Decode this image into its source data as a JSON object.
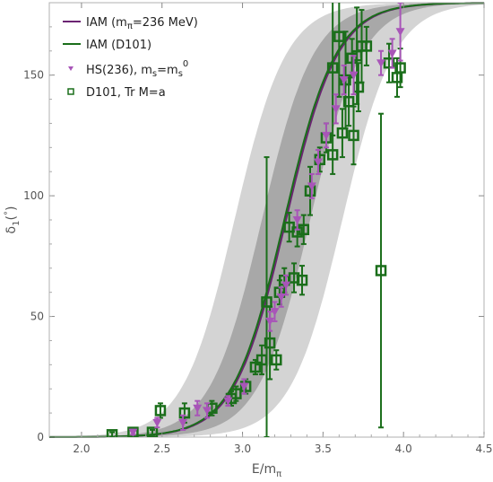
{
  "chart_data": {
    "type": "scatter",
    "title": "",
    "xlabel": "E/mπ",
    "ylabel": "δ1(°)",
    "xlim": [
      1.8,
      4.5
    ],
    "ylim": [
      0,
      180
    ],
    "x_ticks": [
      2.0,
      2.5,
      3.0,
      3.5,
      4.0,
      4.5
    ],
    "y_ticks": [
      0,
      50,
      100,
      150
    ],
    "x_tick_labels": [
      "2.0",
      "2.5",
      "3.0",
      "3.5",
      "4.0",
      "4.5"
    ],
    "y_tick_labels": [
      "0",
      "50",
      "100",
      "150"
    ],
    "legend_position": "top-left",
    "colors": {
      "purple": "#9b59b6",
      "dark_purple": "#5a1e5e",
      "green": "#1a6e1a",
      "band_outer": "#d4d4d4",
      "band_inner": "#a8a8a8"
    },
    "bands": {
      "outer": {
        "midpoint_low": 2.95,
        "midpoint_high": 3.62,
        "width": 0.16
      },
      "inner": {
        "midpoint_low": 3.12,
        "midpoint_high": 3.42,
        "width": 0.16
      }
    },
    "series": [
      {
        "name": "IAM (mπ=236 MeV)",
        "kind": "line",
        "color": "#6b2472",
        "curve": {
          "midpoint": 3.27,
          "width": 0.16,
          "max": 180
        }
      },
      {
        "name": "IAM (D101)",
        "kind": "line",
        "color": "#1a6e1a",
        "curve": {
          "midpoint": 3.26,
          "width": 0.16,
          "max": 180
        }
      },
      {
        "name": "HS(236), ms=ms0",
        "kind": "points",
        "marker": "triangle-down",
        "color": "#a855b8",
        "points": [
          {
            "x": 2.32,
            "y": 2,
            "e": 1
          },
          {
            "x": 2.47,
            "y": 6,
            "e": 2
          },
          {
            "x": 2.63,
            "y": 6,
            "e": 3
          },
          {
            "x": 2.72,
            "y": 12,
            "e": 3
          },
          {
            "x": 2.78,
            "y": 11,
            "e": 3
          },
          {
            "x": 2.91,
            "y": 15,
            "e": 2
          },
          {
            "x": 3.01,
            "y": 21,
            "e": 3
          },
          {
            "x": 3.17,
            "y": 48,
            "e": 4
          },
          {
            "x": 3.2,
            "y": 52,
            "e": 4
          },
          {
            "x": 3.24,
            "y": 58,
            "e": 4
          },
          {
            "x": 3.27,
            "y": 63,
            "e": 4
          },
          {
            "x": 3.34,
            "y": 90,
            "e": 4
          },
          {
            "x": 3.43,
            "y": 104,
            "e": 5
          },
          {
            "x": 3.47,
            "y": 114,
            "e": 5
          },
          {
            "x": 3.52,
            "y": 125,
            "e": 5
          },
          {
            "x": 3.58,
            "y": 136,
            "e": 6
          },
          {
            "x": 3.63,
            "y": 148,
            "e": 6
          },
          {
            "x": 3.69,
            "y": 150,
            "e": 8
          },
          {
            "x": 3.86,
            "y": 155,
            "e": 5
          },
          {
            "x": 3.93,
            "y": 159,
            "e": 6
          },
          {
            "x": 3.98,
            "y": 168,
            "e": 12
          }
        ]
      },
      {
        "name": "D101, Tr M=a",
        "kind": "points",
        "marker": "square-open",
        "color": "#1a6e1a",
        "points": [
          {
            "x": 2.19,
            "y": 1,
            "e": 1
          },
          {
            "x": 2.32,
            "y": 2,
            "e": 1
          },
          {
            "x": 2.44,
            "y": 2,
            "e": 1
          },
          {
            "x": 2.49,
            "y": 11,
            "e": 3
          },
          {
            "x": 2.64,
            "y": 10,
            "e": 4
          },
          {
            "x": 2.81,
            "y": 12,
            "e": 3
          },
          {
            "x": 2.93,
            "y": 16,
            "e": 3
          },
          {
            "x": 2.96,
            "y": 18,
            "e": 3
          },
          {
            "x": 3.02,
            "y": 21,
            "e": 3
          },
          {
            "x": 3.08,
            "y": 29,
            "e": 3
          },
          {
            "x": 3.12,
            "y": 32,
            "e": 6
          },
          {
            "x": 3.15,
            "y": 56,
            "e": 60
          },
          {
            "x": 3.17,
            "y": 39,
            "e": 15
          },
          {
            "x": 3.21,
            "y": 32,
            "e": 4
          },
          {
            "x": 3.23,
            "y": 60,
            "e": 5
          },
          {
            "x": 3.26,
            "y": 65,
            "e": 5
          },
          {
            "x": 3.29,
            "y": 87,
            "e": 6
          },
          {
            "x": 3.32,
            "y": 66,
            "e": 6
          },
          {
            "x": 3.34,
            "y": 85,
            "e": 6
          },
          {
            "x": 3.37,
            "y": 65,
            "e": 6
          },
          {
            "x": 3.38,
            "y": 86,
            "e": 6
          },
          {
            "x": 3.42,
            "y": 102,
            "e": 10
          },
          {
            "x": 3.48,
            "y": 115,
            "e": 5
          },
          {
            "x": 3.52,
            "y": 124,
            "e": 6
          },
          {
            "x": 3.56,
            "y": 153,
            "e": 28
          },
          {
            "x": 3.56,
            "y": 117,
            "e": 8
          },
          {
            "x": 3.6,
            "y": 166,
            "e": 25
          },
          {
            "x": 3.62,
            "y": 126,
            "e": 10
          },
          {
            "x": 3.64,
            "y": 148,
            "e": 20
          },
          {
            "x": 3.66,
            "y": 139,
            "e": 10
          },
          {
            "x": 3.68,
            "y": 157,
            "e": 8
          },
          {
            "x": 3.69,
            "y": 125,
            "e": 12
          },
          {
            "x": 3.71,
            "y": 158,
            "e": 20
          },
          {
            "x": 3.72,
            "y": 145,
            "e": 10
          },
          {
            "x": 3.74,
            "y": 162,
            "e": 15
          },
          {
            "x": 3.77,
            "y": 162,
            "e": 8
          },
          {
            "x": 3.86,
            "y": 69,
            "e": 65
          },
          {
            "x": 3.91,
            "y": 155,
            "e": 8
          },
          {
            "x": 3.96,
            "y": 149,
            "e": 8
          },
          {
            "x": 3.98,
            "y": 153,
            "e": 8
          }
        ]
      }
    ]
  }
}
